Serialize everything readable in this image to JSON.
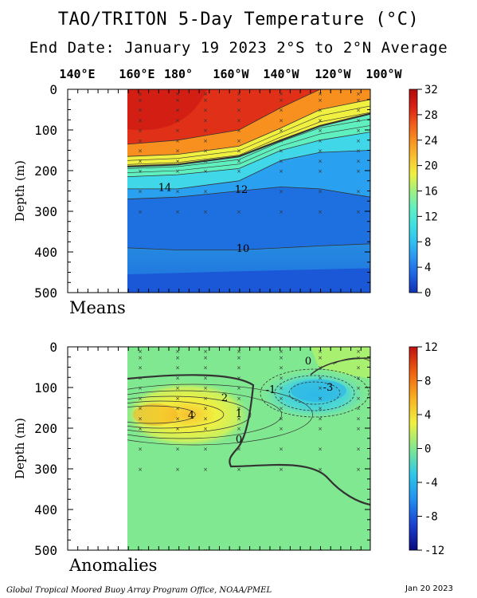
{
  "title": "TAO/TRITON 5-Day Temperature (°C)",
  "subtitle": "End Date: January 19 2023   2°S to 2°N Average",
  "footer_left": "Global Tropical Moored Buoy Array Program Office, NOAA/PMEL",
  "footer_right": "Jan 20 2023",
  "colors": {
    "means_scale": [
      "#1030b0",
      "#1e60e0",
      "#2a90f0",
      "#30c0f0",
      "#40e0e0",
      "#60f0c0",
      "#a0f080",
      "#f0f040",
      "#f8c030",
      "#f89020",
      "#f05a1a",
      "#d81e14",
      "#b00a0a"
    ],
    "anom_scale": [
      "#0a0a80",
      "#1a40d0",
      "#2090f0",
      "#30c8e8",
      "#80e890",
      "#f0f040",
      "#f8b020",
      "#f06010",
      "#c01010"
    ],
    "contour": "#333333"
  },
  "chart_data": [
    {
      "type": "heatmap",
      "panel_label": "Means",
      "ylabel": "Depth (m)",
      "x_ticklabels": [
        "140°E",
        "160°E",
        "180°",
        "160°W",
        "140°W",
        "120°W",
        "100°W"
      ],
      "y_ticklabels": [
        "0",
        "100",
        "200",
        "300",
        "400",
        "500"
      ],
      "ylim": [
        0,
        500
      ],
      "colorbar_ticks": [
        "32",
        "28",
        "24",
        "20",
        "16",
        "12",
        "8",
        "4",
        "0"
      ],
      "colorbar_range": [
        0,
        32
      ],
      "contour_labels": [
        "14",
        "12",
        "10"
      ],
      "isotherm_depths": {
        "longitudes": [
          "160°E",
          "180°",
          "160°W",
          "140°W",
          "120°W",
          "100°W"
        ],
        "t28": [
          135,
          125,
          100,
          45,
          0,
          0
        ],
        "t24": [
          165,
          160,
          140,
          95,
          50,
          25
        ],
        "t20": [
          190,
          185,
          165,
          125,
          90,
          60
        ],
        "t16": [
          215,
          210,
          195,
          150,
          125,
          105
        ],
        "t14": [
          245,
          245,
          225,
          175,
          155,
          150
        ],
        "t12": [
          270,
          265,
          250,
          240,
          245,
          265
        ],
        "t10": [
          390,
          395,
          395,
          390,
          385,
          380
        ]
      }
    },
    {
      "type": "heatmap",
      "panel_label": "Anomalies",
      "ylabel": "Depth (m)",
      "y_ticklabels": [
        "0",
        "100",
        "200",
        "300",
        "400",
        "500"
      ],
      "ylim": [
        0,
        500
      ],
      "colorbar_ticks": [
        "12",
        "8",
        "4",
        "0",
        "-4",
        "-8",
        "-12"
      ],
      "colorbar_range": [
        -12,
        12
      ],
      "contour_labels": [
        "4",
        "2",
        "1",
        "0",
        "-1",
        "-3",
        "0"
      ],
      "features": [
        {
          "name": "warm anomaly",
          "center": "160°E",
          "depth": 170,
          "max": 5
        },
        {
          "name": "cold anomaly",
          "center": "125°W",
          "depth": 110,
          "min": -3
        }
      ]
    }
  ]
}
